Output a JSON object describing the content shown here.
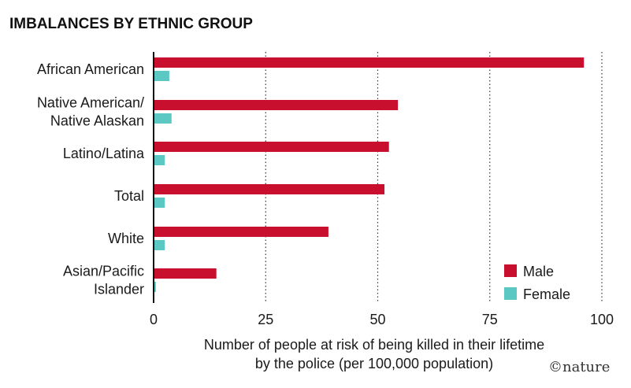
{
  "chart_data": {
    "type": "bar",
    "orientation": "horizontal",
    "title": "IMBALANCES BY ETHNIC GROUP",
    "categories": [
      [
        "African American"
      ],
      [
        "Native American/",
        "Native Alaskan"
      ],
      [
        "Latino/Latina"
      ],
      [
        "Total"
      ],
      [
        "White"
      ],
      [
        "Asian/Pacific",
        "Islander"
      ]
    ],
    "series": [
      {
        "name": "Male",
        "color": "#c8102e",
        "values": [
          96,
          54.5,
          52.5,
          51.5,
          39,
          14
        ]
      },
      {
        "name": "Female",
        "color": "#5cc8c4",
        "values": [
          3.5,
          4,
          2.5,
          2.5,
          2.5,
          0.5
        ]
      }
    ],
    "xlabel": [
      "Number of people at risk of being killed in their lifetime",
      "by the police (per 100,000 population)"
    ],
    "xlim": [
      0,
      100
    ],
    "xticks": [
      "0",
      "25",
      "50",
      "75",
      "100"
    ],
    "grid": "vertical dotted",
    "legend_position": "bottom-right",
    "credit": "©nature"
  }
}
